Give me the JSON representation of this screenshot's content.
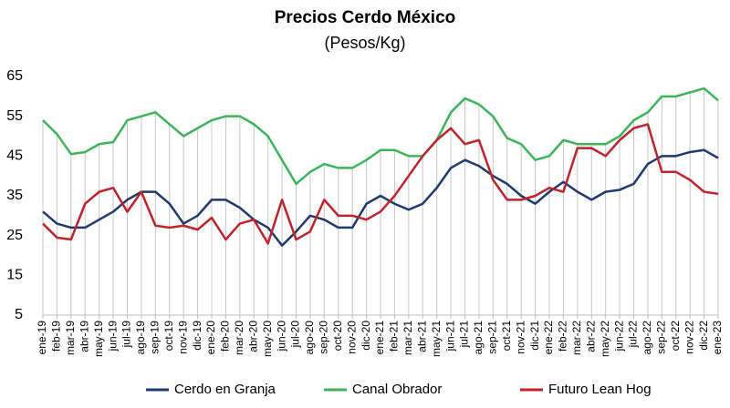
{
  "chart_data": {
    "type": "line",
    "title": "Precios Cerdo México",
    "subtitle": "(Pesos/Kg)",
    "categories": [
      "ene-19",
      "feb-19",
      "mar-19",
      "abr-19",
      "may-19",
      "jun-19",
      "jul-19",
      "ago-19",
      "sep-19",
      "oct-19",
      "nov-19",
      "dic-19",
      "ene-20",
      "feb-20",
      "mar-20",
      "abr-20",
      "may-20",
      "jun-20",
      "jul-20",
      "ago-20",
      "sep-20",
      "oct-20",
      "nov-20",
      "dic-20",
      "ene-21",
      "feb-21",
      "mar-21",
      "abr-21",
      "may-21",
      "jun-21",
      "jul-21",
      "ago-21",
      "sep-21",
      "oct-21",
      "nov-21",
      "dic-21",
      "ene-22",
      "feb-22",
      "mar-22",
      "abr-22",
      "may-22",
      "jun-22",
      "jul-22",
      "ago-22",
      "sep-22",
      "oct-22",
      "nov-22",
      "dic-22",
      "ene-23"
    ],
    "series": [
      {
        "name": "Cerdo en Granja",
        "color": "#1f3a6e",
        "values": [
          31,
          28,
          27,
          27,
          29,
          31,
          34,
          36,
          36,
          33,
          28,
          30,
          34,
          34,
          32,
          29,
          27,
          22.5,
          26,
          30,
          29,
          27,
          27,
          33,
          35,
          33,
          31.5,
          33,
          37,
          42,
          44,
          42.5,
          40,
          38,
          35,
          33,
          36,
          38.5,
          36,
          34,
          36,
          36.5,
          38,
          43,
          45,
          45,
          46,
          46.5,
          44.5
        ]
      },
      {
        "name": "Canal Obrador",
        "color": "#3cb55a",
        "values": [
          54,
          50.5,
          45.5,
          46,
          48,
          48.5,
          54,
          55,
          56,
          53,
          50,
          52,
          54,
          55,
          55,
          53,
          50,
          44,
          38,
          41,
          43,
          42,
          42,
          44,
          46.5,
          46.5,
          45,
          45,
          49,
          56,
          59.5,
          58,
          55,
          49.5,
          48,
          44,
          45,
          49,
          48,
          48,
          48,
          50,
          54,
          56,
          60,
          60,
          61,
          62,
          59
        ]
      },
      {
        "name": "Futuro Lean Hog",
        "color": "#c0232b",
        "values": [
          28,
          24.5,
          24,
          33,
          36,
          37,
          31,
          36,
          27.5,
          27,
          27.5,
          26.5,
          29.5,
          24,
          28,
          29,
          23,
          34,
          24,
          26,
          34,
          30,
          30,
          29,
          31,
          35,
          40,
          45,
          49,
          52,
          48,
          49,
          39,
          34,
          34,
          35,
          37,
          36,
          47,
          47,
          45,
          49,
          52,
          53,
          41,
          41,
          39,
          36,
          35.5
        ]
      }
    ],
    "ylim": [
      5,
      65
    ],
    "yticks": [
      5,
      15,
      25,
      35,
      45,
      55,
      65
    ],
    "legend": "bottom",
    "drop_lines": true
  }
}
